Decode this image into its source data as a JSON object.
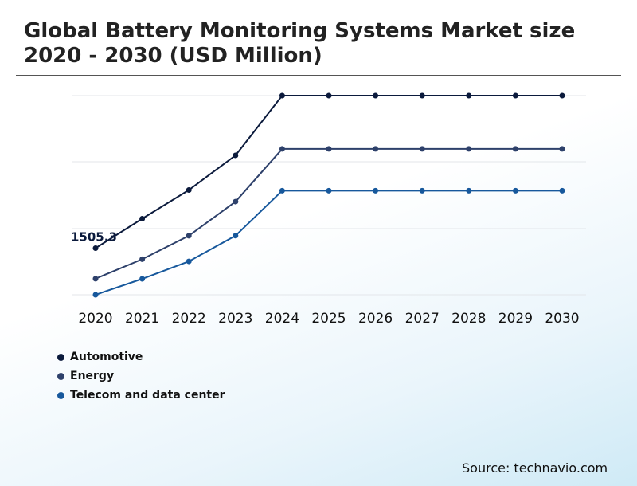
{
  "chart_data": {
    "type": "line",
    "title": "Global Battery Monitoring Systems Market size 2020 - 2030 (USD Million)",
    "categories": [
      "2020",
      "2021",
      "2022",
      "2023",
      "2024",
      "2025",
      "2026",
      "2027",
      "2028",
      "2029",
      "2030"
    ],
    "ylim": [
      0,
      6000
    ],
    "grid": true,
    "legend_position": "bottom-left",
    "series": [
      {
        "name": "Automotive",
        "color": "#0b1a3c",
        "values": [
          1505.3,
          1963.6,
          2410.0,
          2950.0,
          3880.0,
          3880.0,
          3880.0,
          3880.0,
          3880.0,
          3880.0,
          3880.0
        ]
      },
      {
        "name": "Energy",
        "color": "#2e416b",
        "values": [
          1030.0,
          1333.3,
          1699.3,
          2230.0,
          3050.0,
          3050.0,
          3050.0,
          3050.0,
          3050.0,
          3050.0,
          3050.0
        ]
      },
      {
        "name": "Telecom and data center",
        "color": "#17589c",
        "values": [
          780.0,
          1028.0,
          1300.0,
          1700.0,
          2400.0,
          2400.0,
          2400.0,
          2400.0,
          2400.0,
          2400.0,
          2400.0
        ]
      }
    ],
    "annotations": [
      {
        "series": 0,
        "index": 0,
        "text": "1505.3"
      }
    ]
  },
  "source": "Source: technavio.com"
}
